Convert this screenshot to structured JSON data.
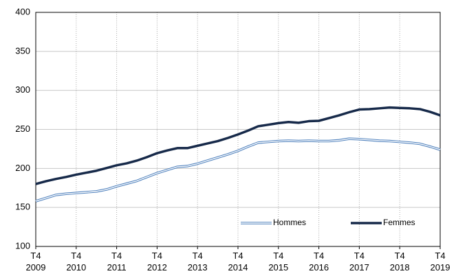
{
  "chart_data": {
    "type": "line",
    "categories": [
      "T4\n2009",
      null,
      null,
      null,
      "T4\n2010",
      null,
      null,
      null,
      "T4\n2011",
      null,
      null,
      null,
      "T4\n2012",
      null,
      null,
      null,
      "T4\n2013",
      null,
      null,
      null,
      "T4\n2014",
      null,
      null,
      null,
      "T4\n2015",
      null,
      null,
      null,
      "T4\n2016",
      null,
      null,
      null,
      "T4\n2017",
      null,
      null,
      null,
      "T4\n2018",
      null,
      null,
      null,
      "T4\n2019"
    ],
    "series": [
      {
        "name": "Hommes",
        "color": "#4f81bd",
        "style": "double",
        "values": [
          158,
          162,
          166,
          167.5,
          168.5,
          169.5,
          170.5,
          173,
          177,
          180.5,
          184,
          189,
          194,
          198,
          202,
          203,
          206,
          210,
          214,
          218,
          222.5,
          228,
          233,
          234,
          235,
          235.5,
          235,
          235.5,
          235,
          235,
          236,
          238,
          237.5,
          236.5,
          235.5,
          235,
          234,
          233,
          231.5,
          228,
          224
        ]
      },
      {
        "name": "Femmes",
        "color": "#172a4a",
        "style": "solid",
        "values": [
          180,
          183.5,
          186.5,
          189,
          192,
          194.5,
          197,
          200.5,
          204,
          206.5,
          210,
          214.5,
          219.5,
          223,
          226,
          226,
          229,
          232,
          235,
          239,
          243.5,
          248.5,
          254,
          256,
          258,
          259.5,
          258.5,
          260.5,
          261,
          264.5,
          268,
          272,
          275.5,
          276,
          277,
          278,
          277.5,
          277,
          276,
          272.5,
          268
        ]
      }
    ],
    "ylim": [
      100,
      400
    ],
    "yticks": [
      100,
      150,
      200,
      250,
      300,
      350,
      400
    ],
    "grid": true,
    "legend": "lower center"
  }
}
